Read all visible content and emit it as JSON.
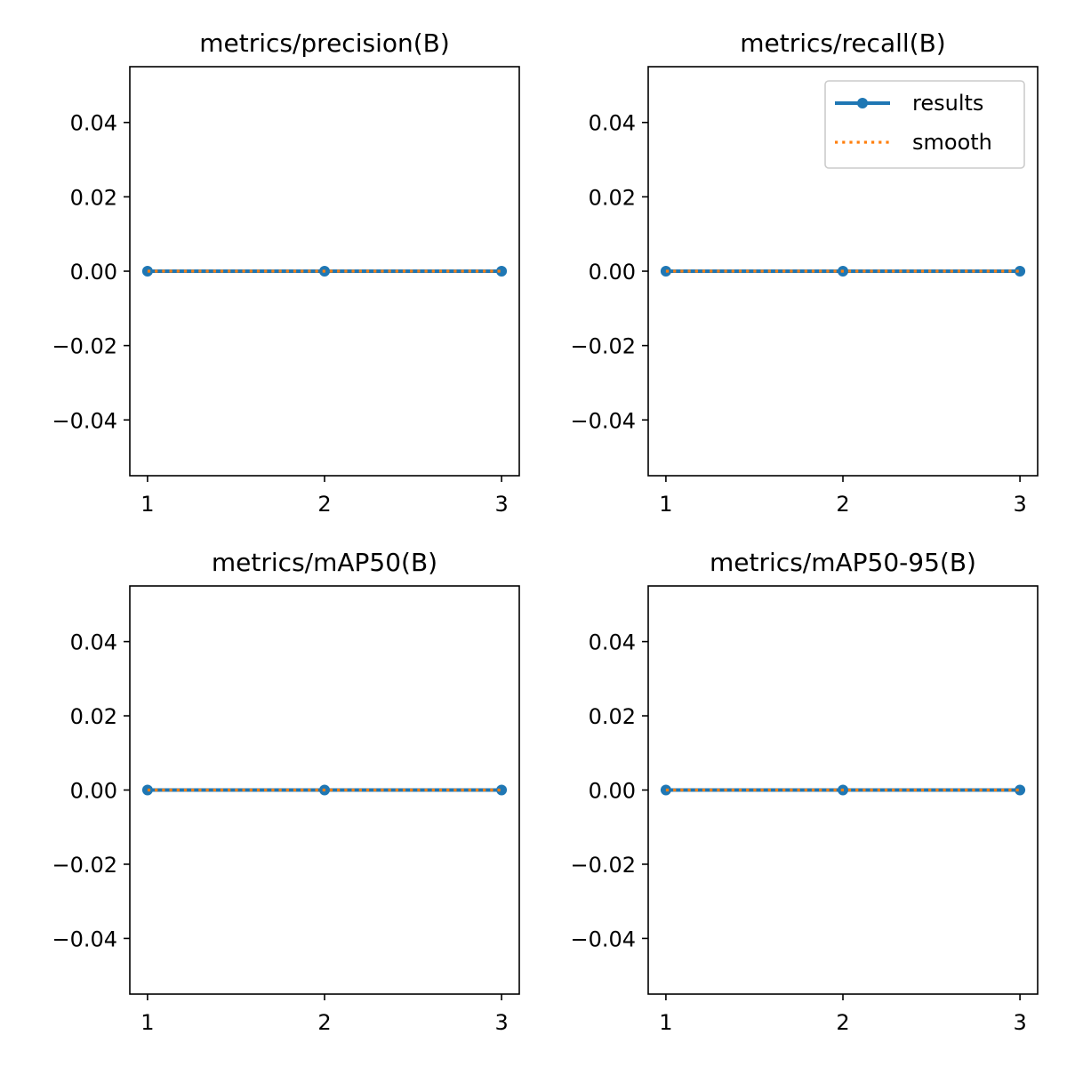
{
  "chart_data": [
    {
      "type": "line",
      "title": "metrics/precision(B)",
      "x": [
        1,
        2,
        3
      ],
      "xticks": [
        "1",
        "2",
        "3"
      ],
      "xlim": [
        0.9,
        3.1
      ],
      "ylim": [
        -0.055,
        0.055
      ],
      "yticks": [
        0.04,
        0.02,
        0.0,
        -0.02,
        -0.04
      ],
      "ytick_labels": [
        "0.04",
        "0.02",
        "0.00",
        "−0.02",
        "−0.04"
      ],
      "series": [
        {
          "values": [
            0,
            0,
            0
          ],
          "color": "#1f77b4",
          "style": "solid-marker"
        },
        {
          "values": [
            0,
            0,
            0
          ],
          "color": "#ff7f0e",
          "style": "dotted"
        }
      ]
    },
    {
      "type": "line",
      "title": "metrics/recall(B)",
      "x": [
        1,
        2,
        3
      ],
      "xticks": [
        "1",
        "2",
        "3"
      ],
      "xlim": [
        0.9,
        3.1
      ],
      "ylim": [
        -0.055,
        0.055
      ],
      "yticks": [
        0.04,
        0.02,
        0.0,
        -0.02,
        -0.04
      ],
      "ytick_labels": [
        "0.04",
        "0.02",
        "0.00",
        "−0.02",
        "−0.04"
      ],
      "legend": {
        "placement": "top-right",
        "entries": [
          "results",
          "smooth"
        ]
      },
      "series": [
        {
          "name": "results",
          "values": [
            0,
            0,
            0
          ],
          "color": "#1f77b4",
          "style": "solid-marker"
        },
        {
          "name": "smooth",
          "values": [
            0,
            0,
            0
          ],
          "color": "#ff7f0e",
          "style": "dotted"
        }
      ]
    },
    {
      "type": "line",
      "title": "metrics/mAP50(B)",
      "x": [
        1,
        2,
        3
      ],
      "xticks": [
        "1",
        "2",
        "3"
      ],
      "xlim": [
        0.9,
        3.1
      ],
      "ylim": [
        -0.055,
        0.055
      ],
      "yticks": [
        0.04,
        0.02,
        0.0,
        -0.02,
        -0.04
      ],
      "ytick_labels": [
        "0.04",
        "0.02",
        "0.00",
        "−0.02",
        "−0.04"
      ],
      "series": [
        {
          "values": [
            0,
            0,
            0
          ],
          "color": "#1f77b4",
          "style": "solid-marker"
        },
        {
          "values": [
            0,
            0,
            0
          ],
          "color": "#ff7f0e",
          "style": "dotted"
        }
      ]
    },
    {
      "type": "line",
      "title": "metrics/mAP50-95(B)",
      "x": [
        1,
        2,
        3
      ],
      "xticks": [
        "1",
        "2",
        "3"
      ],
      "xlim": [
        0.9,
        3.1
      ],
      "ylim": [
        -0.055,
        0.055
      ],
      "yticks": [
        0.04,
        0.02,
        0.0,
        -0.02,
        -0.04
      ],
      "ytick_labels": [
        "0.04",
        "0.02",
        "0.00",
        "−0.02",
        "−0.04"
      ],
      "series": [
        {
          "values": [
            0,
            0,
            0
          ],
          "color": "#1f77b4",
          "style": "solid-marker"
        },
        {
          "values": [
            0,
            0,
            0
          ],
          "color": "#ff7f0e",
          "style": "dotted"
        }
      ]
    }
  ]
}
